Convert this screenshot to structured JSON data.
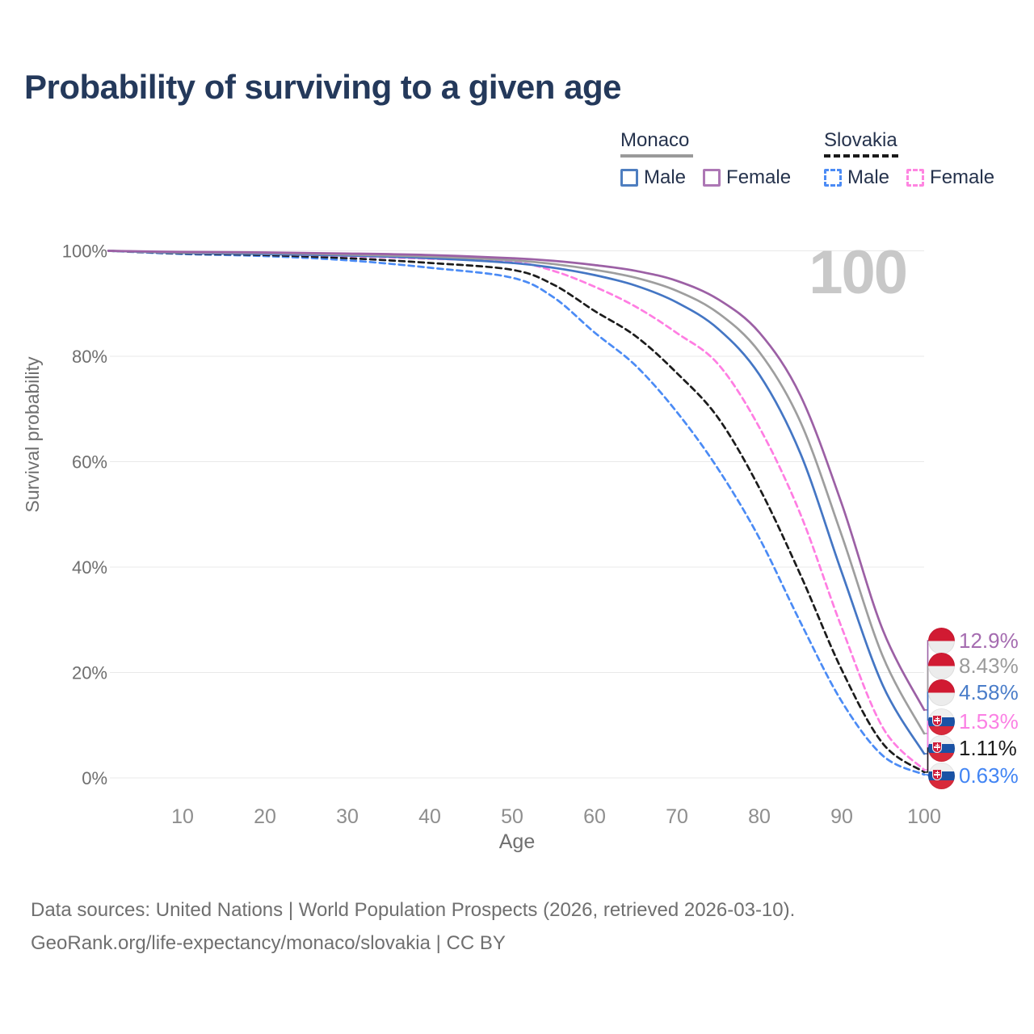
{
  "title": "Probability of surviving to a given age",
  "watermark": "100",
  "legend": {
    "groups": [
      {
        "country": "Monaco",
        "line_style": "solid",
        "underline_color": "#9a9a9a",
        "items": [
          {
            "label": "Male",
            "color": "#4e7ec0",
            "dashed": false
          },
          {
            "label": "Female",
            "color": "#ad77b5",
            "dashed": false
          }
        ]
      },
      {
        "country": "Slovakia",
        "line_style": "dashed",
        "underline_color": "#1a1a1a",
        "items": [
          {
            "label": "Male",
            "color": "#4b8bf5",
            "dashed": true
          },
          {
            "label": "Female",
            "color": "#ff85e1",
            "dashed": true
          }
        ]
      }
    ]
  },
  "chart_data": {
    "type": "line",
    "title": "Probability of surviving to a given age",
    "xlabel": "Age",
    "ylabel": "Survival probability",
    "xlim": [
      0,
      100
    ],
    "ylim": [
      0,
      100
    ],
    "grid": true,
    "legend_position": "top-right",
    "xtick_values": [
      10,
      20,
      30,
      40,
      50,
      60,
      70,
      80,
      90,
      100
    ],
    "xtick_labels": [
      "10",
      "20",
      "30",
      "40",
      "50",
      "60",
      "70",
      "80",
      "90",
      "100"
    ],
    "ytick_values": [
      100,
      80,
      60,
      40,
      20,
      0
    ],
    "ytick_labels": [
      "100%",
      "80%",
      "60%",
      "40%",
      "20%",
      "0%"
    ],
    "x": [
      1,
      10,
      20,
      30,
      40,
      50,
      55,
      60,
      65,
      70,
      75,
      80,
      85,
      90,
      95,
      100
    ],
    "series": [
      {
        "name": "Monaco Female",
        "country": "Monaco",
        "sex": "Female",
        "dashed": false,
        "color": "#9c60a5",
        "label_color": "#a56cb0",
        "end_label": "12.9%",
        "flag_class": "flag monaco",
        "values": [
          100,
          99.8,
          99.7,
          99.5,
          99.2,
          98.6,
          98.1,
          97.3,
          96.2,
          94.3,
          90.8,
          84.5,
          72.5,
          52,
          28,
          12.9
        ]
      },
      {
        "name": "Monaco Both sexes",
        "country": "Monaco",
        "sex": "Both",
        "dashed": false,
        "color": "#9e9e9e",
        "label_color": "#9b9b9b",
        "end_label": "8.43%",
        "flag_class": "flag monaco",
        "values": [
          100,
          99.7,
          99.6,
          99.3,
          98.9,
          98.2,
          97.5,
          96.4,
          94.9,
          92.4,
          88.2,
          80.8,
          67.5,
          46,
          23,
          8.43
        ]
      },
      {
        "name": "Monaco Male",
        "country": "Monaco",
        "sex": "Male",
        "dashed": false,
        "color": "#4476c4",
        "label_color": "#4a7dc9",
        "end_label": "4.58%",
        "flag_class": "flag monaco",
        "values": [
          100,
          99.6,
          99.4,
          99.1,
          98.6,
          97.7,
          96.8,
          95.4,
          93.4,
          90.2,
          85.2,
          76.5,
          61.5,
          39,
          17.5,
          4.58
        ]
      },
      {
        "name": "Slovakia Female",
        "country": "Slovakia",
        "sex": "Female",
        "dashed": true,
        "color": "#ff7de2",
        "label_color": "#fb80e4",
        "end_label": "1.53%",
        "flag_class": "flag slovakia",
        "values": [
          100,
          99.6,
          99.4,
          99.0,
          98.5,
          97.9,
          96.2,
          93.2,
          89.4,
          84.4,
          78.5,
          66.5,
          50,
          28.5,
          9.5,
          1.53
        ]
      },
      {
        "name": "Slovakia Both sexes",
        "country": "Slovakia",
        "sex": "Both",
        "dashed": true,
        "color": "#1c1c1c",
        "label_color": "#1c1c1c",
        "end_label": "1.11%",
        "flag_class": "flag slovakia",
        "values": [
          100,
          99.5,
          99.2,
          98.6,
          97.7,
          96.4,
          93.6,
          88.6,
          83.8,
          76.8,
          68.3,
          55,
          38.5,
          20.5,
          6.5,
          1.11
        ]
      },
      {
        "name": "Slovakia Male",
        "country": "Slovakia",
        "sex": "Male",
        "dashed": true,
        "color": "#4b8bf5",
        "label_color": "#4285f4",
        "end_label": "0.63%",
        "flag_class": "flag slovakia",
        "values": [
          100,
          99.4,
          99.0,
          98.2,
          96.8,
          94.9,
          91.2,
          84.5,
          78.2,
          69.4,
          58.6,
          45.5,
          29.5,
          14.5,
          4.2,
          0.63
        ]
      }
    ]
  },
  "footer": {
    "line1": "Data sources: United Nations | World Population Prospects (2026, retrieved 2026-03-10).",
    "line2": "GeoRank.org/life-expectancy/monaco/slovakia | CC BY"
  }
}
